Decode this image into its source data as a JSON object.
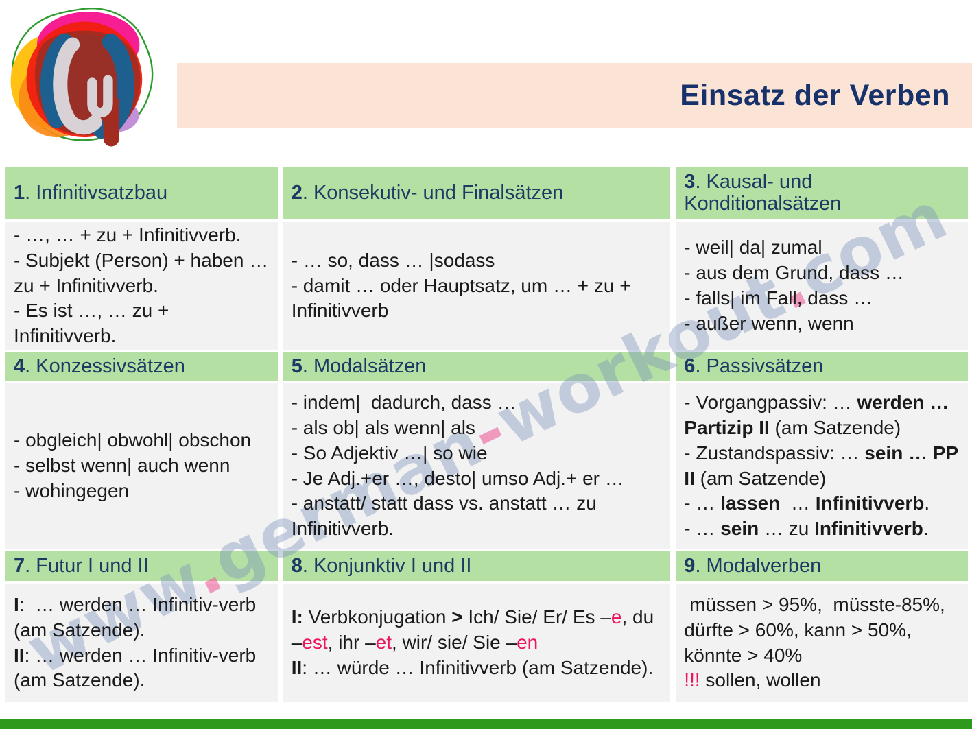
{
  "banner": {
    "title": "Einsatz der Verben"
  },
  "watermark": {
    "parts": [
      {
        "t": "www"
      },
      {
        "t": ".",
        "pink": true
      },
      {
        "t": "german"
      },
      {
        "t": "-",
        "pink": true
      },
      {
        "t": "workout"
      },
      {
        "t": ".",
        "pink": true
      },
      {
        "t": "com"
      }
    ]
  },
  "colors": {
    "header_green": "#b5e0a4",
    "cell_gray": "#f2f2f2",
    "banner_peach": "#fbe4d5",
    "navy": "#1f3864",
    "pink": "#ec155e",
    "footer_green": "#2f991d"
  },
  "cells": [
    {
      "num": "1",
      "title": "Infinitivsatzbau",
      "lines": [
        [
          {
            "t": "- …, … + zu + Infinitivverb."
          }
        ],
        [
          {
            "t": "- Subjekt (Person) + haben … zu + Infinitivverb."
          }
        ],
        [
          {
            "t": "- Es ist …, … zu + Infinitivverb."
          }
        ]
      ]
    },
    {
      "num": "2",
      "title": "Konsekutiv- und Finalsätzen",
      "lines": [
        [
          {
            "t": "- … so, dass … |sodass"
          }
        ],
        [
          {
            "t": "- damit … oder Hauptsatz, um … + zu + Infinitivverb"
          }
        ]
      ]
    },
    {
      "num": "3",
      "title": "Kausal- und Konditionalsätzen",
      "lines": [
        [
          {
            "t": "- weil| da| zumal"
          }
        ],
        [
          {
            "t": "- aus dem Grund, dass …"
          }
        ],
        [
          {
            "t": "- falls| im Fall, dass …"
          }
        ],
        [
          {
            "t": "- außer wenn, wenn"
          }
        ]
      ]
    },
    {
      "num": "4",
      "title": "Konzessivsätzen",
      "lines": [
        [
          {
            "t": "- obgleich| obwohl| obschon"
          }
        ],
        [
          {
            "t": "- selbst wenn| auch wenn"
          }
        ],
        [
          {
            "t": "- wohingegen"
          }
        ]
      ]
    },
    {
      "num": "5",
      "title": "Modalsätzen",
      "lines": [
        [
          {
            "t": "- indem|  dadurch, dass …"
          }
        ],
        [
          {
            "t": "- als ob| als wenn| als"
          }
        ],
        [
          {
            "t": "- So Adjektiv …| so wie"
          }
        ],
        [
          {
            "t": "- Je Adj.+er …, desto| umso Adj.+ er …"
          }
        ],
        [
          {
            "t": "- anstatt/ statt dass vs. anstatt … zu Infinitivverb."
          }
        ]
      ]
    },
    {
      "num": "6",
      "title": "Passivsätzen",
      "lines": [
        [
          {
            "t": "- Vorgangpassiv: … "
          },
          {
            "t": "werden … Partizip II",
            "b": true
          },
          {
            "t": " (am Satzende)"
          }
        ],
        [
          {
            "t": "- Zustandspassiv: … "
          },
          {
            "t": "sein … PP II",
            "b": true
          },
          {
            "t": " (am Satzende)"
          }
        ],
        [
          {
            "t": "- … "
          },
          {
            "t": "lassen",
            "b": true
          },
          {
            "t": "  … "
          },
          {
            "t": "Infinitivverb",
            "b": true
          },
          {
            "t": "."
          }
        ],
        [
          {
            "t": "- … "
          },
          {
            "t": "sein",
            "b": true
          },
          {
            "t": " … zu "
          },
          {
            "t": "Infinitivverb",
            "b": true
          },
          {
            "t": "."
          }
        ]
      ]
    },
    {
      "num": "7",
      "title": "Futur I und II",
      "lines": [
        [
          {
            "t": "I",
            "b": true
          },
          {
            "t": ":  … werden … Infinitiv-verb (am Satzende)."
          }
        ],
        [
          {
            "t": "II",
            "b": true
          },
          {
            "t": ": … werden … Infinitiv-verb (am Satzende)."
          }
        ]
      ]
    },
    {
      "num": "8",
      "title": "Konjunktiv I und II",
      "lines": [
        [
          {
            "t": "I:",
            "b": true
          },
          {
            "t": " Verbkonjugation "
          },
          {
            "t": ">",
            "b": true
          },
          {
            "t": " Ich/ Sie/ Er/ Es –"
          },
          {
            "t": "e",
            "pink": true
          },
          {
            "t": ", du –"
          },
          {
            "t": "est",
            "pink": true
          },
          {
            "t": ", ihr –"
          },
          {
            "t": "et",
            "pink": true
          },
          {
            "t": ", wir/ sie/ Sie –"
          },
          {
            "t": "en",
            "pink": true
          }
        ],
        [
          {
            "t": "II",
            "b": true
          },
          {
            "t": ": … würde … Infinitivverb (am Satzende)."
          }
        ]
      ]
    },
    {
      "num": "9",
      "title": "Modalverben",
      "lines": [
        [
          {
            "t": " müssen > 95%,  müsste-85%, dürfte > 60%, kann > 50%,  könnte > 40%"
          }
        ],
        [
          {
            "t": "!!!",
            "pink": true
          },
          {
            "t": " sollen, wollen"
          }
        ]
      ]
    }
  ]
}
